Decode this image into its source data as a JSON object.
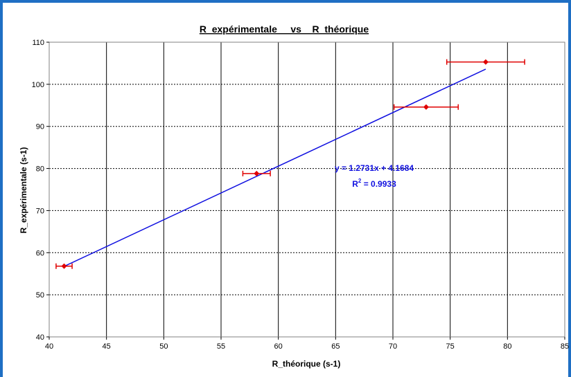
{
  "chart_data": {
    "type": "scatter",
    "title": "R  expérimentale     vs    R  théorique",
    "xlabel": "R_théorique (s-1)",
    "ylabel": "R_expérimentale (s-1)",
    "xlim": [
      40,
      85
    ],
    "ylim": [
      40,
      110
    ],
    "x_ticks": [
      "40",
      "45",
      "50",
      "55",
      "60",
      "65",
      "70",
      "75",
      "80",
      "85"
    ],
    "y_ticks": [
      "40",
      "50",
      "60",
      "70",
      "80",
      "90",
      "100",
      "110"
    ],
    "grid": {
      "x": "solid",
      "y": "dashed"
    },
    "points": [
      {
        "x": 41.3,
        "y": 56.8,
        "xerr": 0.7
      },
      {
        "x": 58.1,
        "y": 78.8,
        "xerr": 1.2
      },
      {
        "x": 72.9,
        "y": 94.6,
        "xerr": 2.8
      },
      {
        "x": 78.1,
        "y": 105.3,
        "xerr": 3.4
      }
    ],
    "trendline": {
      "slope": 1.2731,
      "intercept": 4.1684,
      "x_range": [
        41.3,
        78.1
      ],
      "equation": "y = 1.2731x + 4.1684",
      "r2_label": "R",
      "r2_sup": "2",
      "r2_value": " = 0.9933"
    },
    "colors": {
      "marker": "#e00000",
      "errorbar": "#e00000",
      "trendline": "#1010e0",
      "frame": "#1f6fc4"
    }
  }
}
